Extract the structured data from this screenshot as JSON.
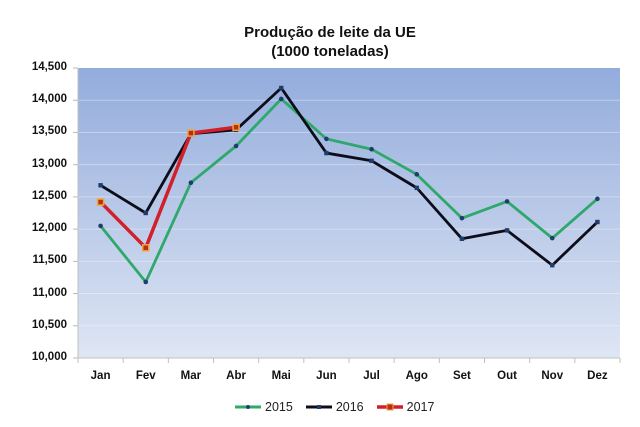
{
  "chart_data": {
    "type": "line",
    "title": "Produção de leite da UE",
    "subtitle": "(1000 toneladas)",
    "xlabel": "",
    "ylabel": "",
    "categories": [
      "Jan",
      "Fev",
      "Mar",
      "Abr",
      "Mai",
      "Jun",
      "Jul",
      "Ago",
      "Set",
      "Out",
      "Nov",
      "Dez"
    ],
    "series": [
      {
        "name": "2015",
        "color": "#2ea86b",
        "marker_color": "#1f3d6b",
        "values": [
          12050,
          11180,
          12720,
          13290,
          14020,
          13400,
          13240,
          12850,
          12170,
          12430,
          11860,
          12470
        ]
      },
      {
        "name": "2016",
        "color": "#0d0d1a",
        "marker_color": "#1f3d6b",
        "values": [
          12680,
          12250,
          13480,
          13540,
          14190,
          13180,
          13060,
          12640,
          11850,
          11980,
          11440,
          12110
        ]
      },
      {
        "name": "2017",
        "color": "#d1202a",
        "marker_color": "#f2a33a",
        "values": [
          12420,
          11710,
          13490,
          13580,
          null,
          null,
          null,
          null,
          null,
          null,
          null,
          null
        ]
      }
    ],
    "ylim": [
      10000,
      14500
    ],
    "yticks": [
      "14,500",
      "14,000",
      "13,500",
      "13,000",
      "12,500",
      "12,000",
      "11,500",
      "11,000",
      "10,500",
      "10,000"
    ],
    "ytick_values": [
      14500,
      14000,
      13500,
      13000,
      12500,
      12000,
      11500,
      11000,
      10500,
      10000
    ],
    "grid": true,
    "legend_position": "bottom",
    "background_gradient": [
      "#93acdc",
      "#dfe6f4"
    ]
  }
}
